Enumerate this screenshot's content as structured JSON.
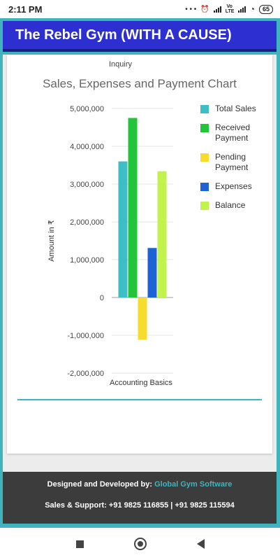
{
  "status_bar": {
    "time": "2:11 PM",
    "dots": "• • •",
    "alarm_icon": "alarm-icon",
    "network_label": "Vo LTE",
    "wifi_icon": "wifi-icon",
    "battery": "65"
  },
  "header": {
    "title": "The Rebel Gym (WITH A CAUSE)",
    "background": "#2d2fd0"
  },
  "card": {
    "top_text": "Inquiry"
  },
  "chart_data": {
    "type": "bar",
    "title": "Sales, Expenses and Payment Chart",
    "ylabel": "Amount in ₹",
    "categories": [
      "Accounting Basics"
    ],
    "ylim": [
      -2000000,
      5000000
    ],
    "yticks": [
      "5,000,000",
      "4,000,000",
      "3,000,000",
      "2,000,000",
      "1,000,000",
      "0",
      "-1,000,000",
      "-2,000,000"
    ],
    "ytick_values": [
      5000000,
      4000000,
      3000000,
      2000000,
      1000000,
      0,
      -1000000,
      -2000000
    ],
    "grid": true,
    "legend_position": "right",
    "series": [
      {
        "name": "Total Sales",
        "values": [
          3600000
        ],
        "color": "#3dbdc4"
      },
      {
        "name": "Received Payment",
        "values": [
          4750000
        ],
        "color": "#22c43a"
      },
      {
        "name": "Pending Payment",
        "values": [
          -1120000
        ],
        "color": "#f7dc2e"
      },
      {
        "name": "Expenses",
        "values": [
          1310000
        ],
        "color": "#1e63d6"
      },
      {
        "name": "Balance",
        "values": [
          3340000
        ],
        "color": "#c2f24c"
      }
    ]
  },
  "footer": {
    "designed_by_label": "Designed and Developed by:",
    "designed_by_link": "Global Gym Software",
    "support": "Sales & Support: +91 9825 116855 | +91 9825 115594"
  },
  "nav": {
    "recents_icon": "recents-icon",
    "home_icon": "home-icon",
    "back_icon": "back-icon"
  }
}
